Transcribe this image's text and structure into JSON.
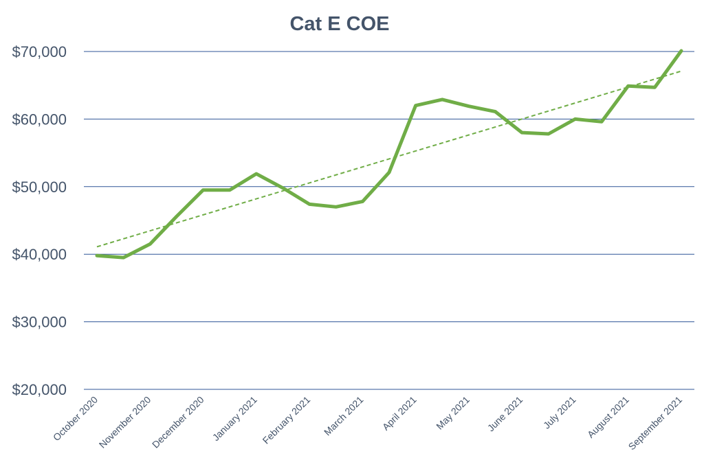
{
  "chart_data": {
    "type": "line",
    "title": "Cat E COE",
    "xlabel": "",
    "ylabel": "",
    "x_tick_labels": [
      "October 2020",
      "November 2020",
      "December 2020",
      "January 2021",
      "February 2021",
      "March 2021",
      "April 2021",
      "May 2021",
      "June 2021",
      "July 2021",
      "August 2021",
      "September 2021"
    ],
    "y_ticks": [
      20000,
      30000,
      40000,
      50000,
      60000,
      70000
    ],
    "y_tick_labels": [
      "$20,000",
      "$30,000",
      "$40,000",
      "$50,000",
      "$60,000",
      "$70,000"
    ],
    "ylim": [
      20000,
      70000
    ],
    "grid": true,
    "legend": "none",
    "series": [
      {
        "color": "#70ad47",
        "values": [
          39800,
          39500,
          41500,
          45600,
          49500,
          49500,
          51900,
          49800,
          47400,
          47000,
          47800,
          52100,
          62000,
          62900,
          61900,
          61100,
          58000,
          57800,
          60000,
          59600,
          64900,
          64700,
          70100
        ]
      }
    ],
    "trendline": {
      "type": "linear",
      "style": "dashed",
      "color": "#70ad47",
      "start": 41100,
      "end": 67100
    }
  }
}
